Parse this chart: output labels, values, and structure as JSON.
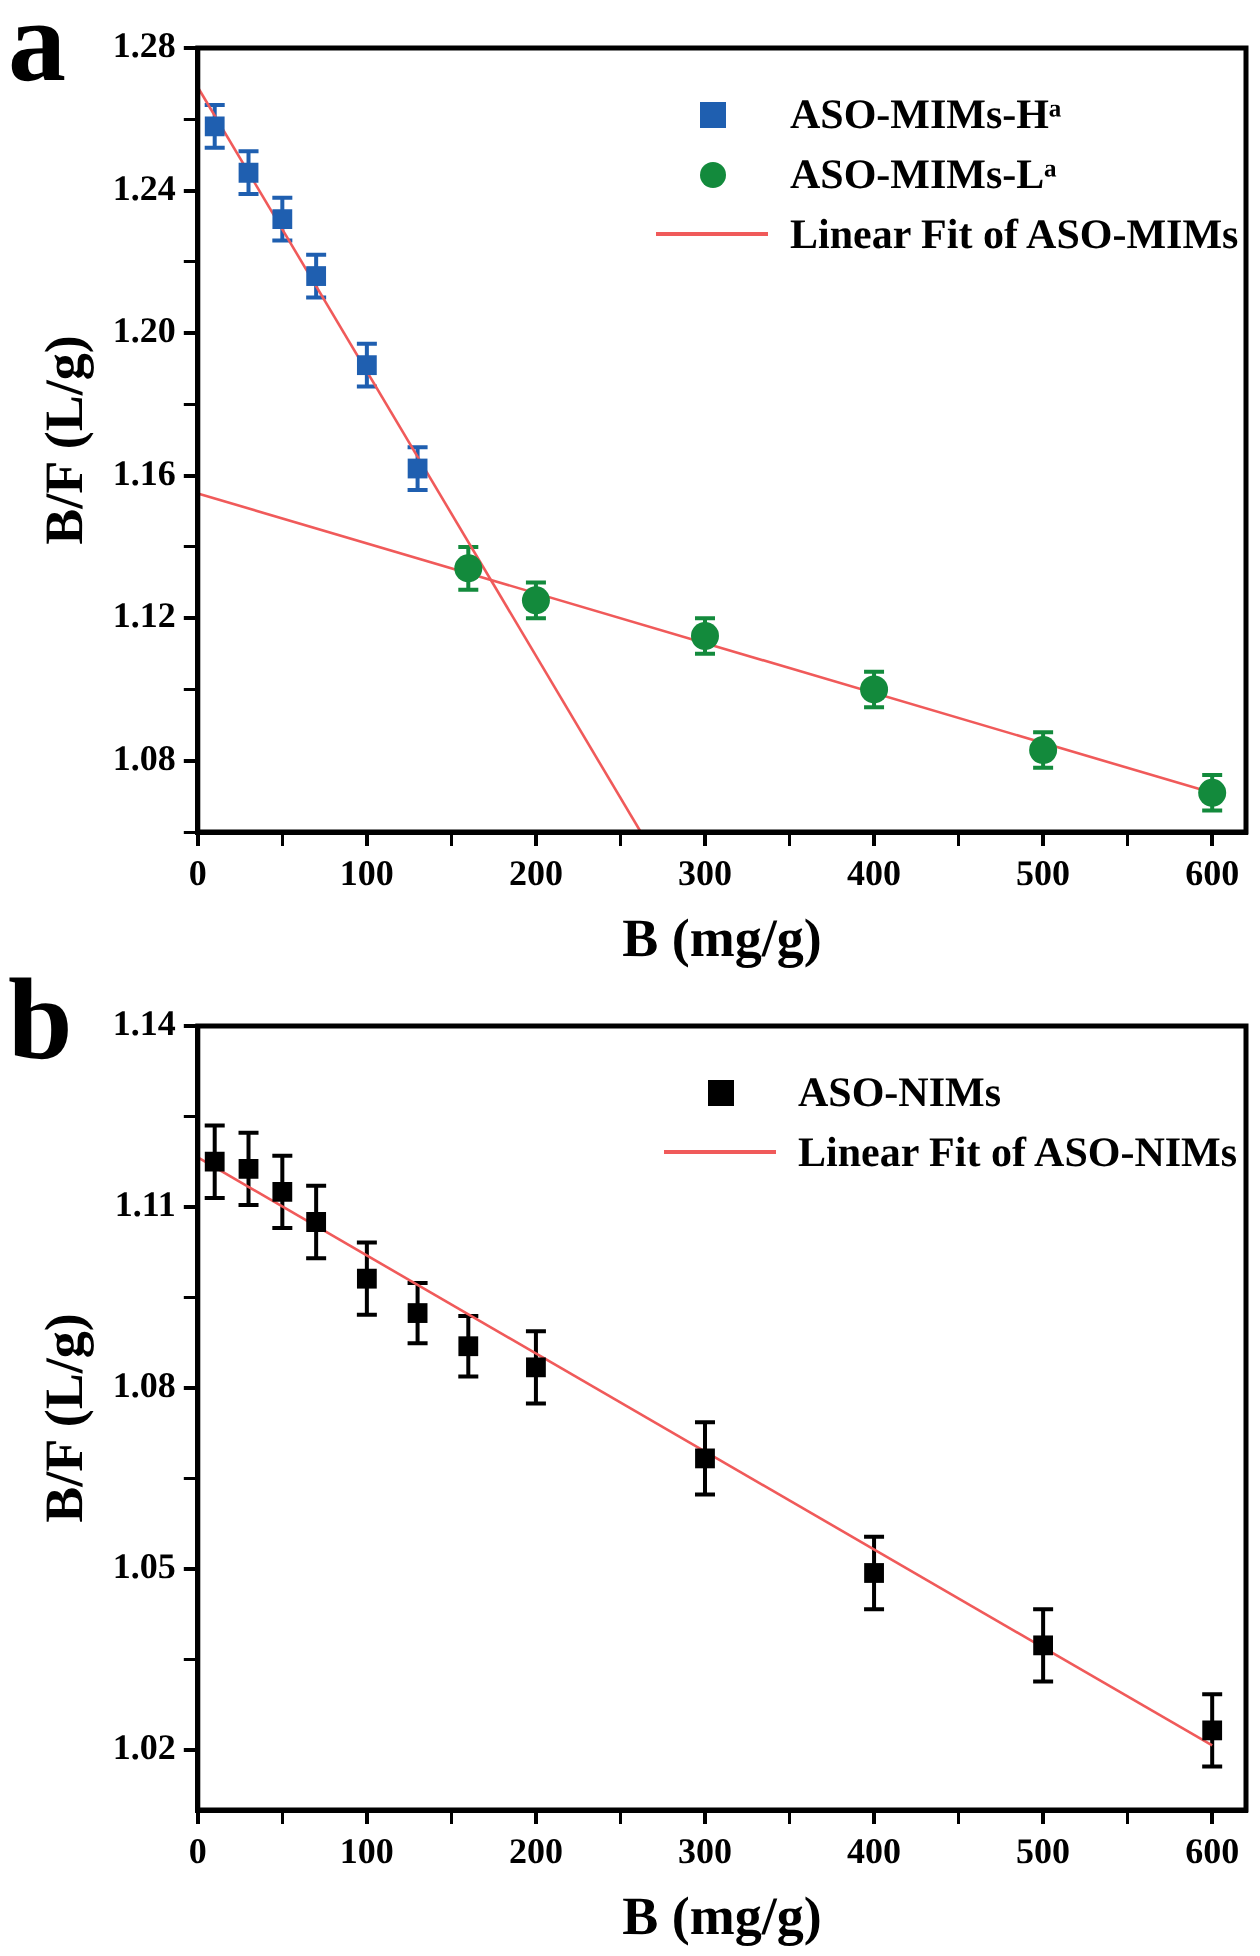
{
  "chart_data": [
    {
      "type": "scatter",
      "title": "a",
      "xlabel": "B (mg/g)",
      "ylabel": "B/F (L/g)",
      "xlim": [
        0,
        620
      ],
      "xticks": [
        0,
        {
          "value": 50,
          "label": null
        },
        100,
        {
          "value": 150,
          "label": null
        },
        200,
        {
          "value": 250,
          "label": null
        },
        300,
        {
          "value": 350,
          "label": null
        },
        400,
        {
          "value": 450,
          "label": null
        },
        500,
        {
          "value": 550,
          "label": null
        },
        600
      ],
      "ylim": [
        1.06,
        1.28
      ],
      "yticks": [
        {
          "value": 1.06,
          "label": null
        },
        1.08,
        {
          "value": 1.1,
          "label": null
        },
        1.12,
        {
          "value": 1.14,
          "label": null
        },
        1.16,
        {
          "value": 1.18,
          "label": null
        },
        {
          "value": 1.2,
          "label": "1.20"
        },
        {
          "value": 1.22,
          "label": null
        },
        1.24,
        {
          "value": 1.26,
          "label": null
        },
        1.28
      ],
      "grid": false,
      "legend": "top right",
      "series": [
        {
          "name": "ASO-MIMs-Hᵃ",
          "type": "scatter",
          "marker": "square",
          "color": "#1f5fb0",
          "x": [
            10,
            30,
            50,
            70,
            100,
            130
          ],
          "values": [
            1.258,
            1.245,
            1.232,
            1.216,
            1.191,
            1.162
          ],
          "errors": [
            0.006,
            0.006,
            0.006,
            0.006,
            0.006,
            0.006
          ]
        },
        {
          "name": "ASO-MIMs-Lᵃ",
          "type": "scatter",
          "marker": "circle",
          "color": "#138a3c",
          "x": [
            160,
            200,
            300,
            400,
            500,
            600
          ],
          "values": [
            1.134,
            1.125,
            1.115,
            1.1,
            1.083,
            1.071
          ],
          "errors": [
            0.006,
            0.005,
            0.005,
            0.005,
            0.005,
            0.005
          ]
        },
        {
          "name": "Linear Fit of ASO-MIMs",
          "type": "line",
          "marker": "none",
          "color": "#f05a5a",
          "x": [
            0,
            262
          ],
          "values": [
            1.269,
            1.06
          ]
        },
        {
          "type": "line",
          "marker": "none",
          "color": "#f05a5a",
          "x": [
            0,
            600
          ],
          "values": [
            1.155,
            1.071
          ]
        }
      ]
    },
    {
      "type": "scatter",
      "title": "b",
      "xlabel": "B (mg/g)",
      "ylabel": "B/F (L/g)",
      "xlim": [
        0,
        620
      ],
      "xticks": [
        0,
        {
          "value": 50,
          "label": null
        },
        100,
        {
          "value": 150,
          "label": null
        },
        200,
        {
          "value": 250,
          "label": null
        },
        300,
        {
          "value": 350,
          "label": null
        },
        400,
        {
          "value": 450,
          "label": null
        },
        500,
        {
          "value": 550,
          "label": null
        },
        600
      ],
      "ylim": [
        1.01,
        1.14
      ],
      "yticks": [
        1.02,
        {
          "value": 1.035,
          "label": null
        },
        1.05,
        {
          "value": 1.065,
          "label": null
        },
        1.08,
        {
          "value": 1.095,
          "label": null
        },
        1.11,
        {
          "value": 1.125,
          "label": null
        },
        1.14
      ],
      "grid": false,
      "legend": "top right",
      "series": [
        {
          "name": "ASO-NIMs",
          "type": "scatter",
          "marker": "square",
          "color": "#000000",
          "x": [
            10,
            30,
            50,
            70,
            100,
            130,
            160,
            200,
            300,
            400,
            500,
            600
          ],
          "values": [
            1.1175,
            1.1163,
            1.1125,
            1.1075,
            1.0981,
            1.0924,
            1.0869,
            1.0834,
            1.0683,
            1.0493,
            1.0373,
            1.0232
          ],
          "errors": [
            0.006,
            0.006,
            0.006,
            0.006,
            0.006,
            0.005,
            0.005,
            0.006,
            0.006,
            0.006,
            0.006,
            0.006
          ]
        },
        {
          "name": "Linear Fit of ASO-NIMs",
          "type": "line",
          "marker": "none",
          "color": "#f05a5a",
          "x": [
            0,
            600
          ],
          "values": [
            1.1182,
            1.0207
          ]
        }
      ]
    }
  ]
}
